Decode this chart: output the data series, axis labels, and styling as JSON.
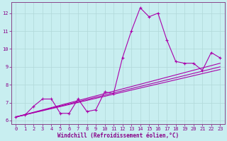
{
  "xlabel": "Windchill (Refroidissement éolien,°C)",
  "background_color": "#c8eef0",
  "grid_color": "#b0d8d8",
  "line_color": "#aa00aa",
  "text_color": "#880088",
  "spine_color": "#884488",
  "xlim": [
    -0.5,
    23.5
  ],
  "ylim": [
    5.8,
    12.6
  ],
  "yticks": [
    6,
    7,
    8,
    9,
    10,
    11,
    12
  ],
  "xticks": [
    0,
    1,
    2,
    3,
    4,
    5,
    6,
    7,
    8,
    9,
    10,
    11,
    12,
    13,
    14,
    15,
    16,
    17,
    18,
    19,
    20,
    21,
    22,
    23
  ],
  "series1_x": [
    0,
    1,
    2,
    3,
    4,
    5,
    6,
    7,
    8,
    9,
    10,
    11,
    12,
    13,
    14,
    15,
    16,
    17,
    18,
    19,
    20,
    21,
    22,
    23
  ],
  "series1_y": [
    6.2,
    6.3,
    6.8,
    7.2,
    7.2,
    6.4,
    6.4,
    7.2,
    6.5,
    6.6,
    7.6,
    7.5,
    9.5,
    11.0,
    12.3,
    11.8,
    12.0,
    10.5,
    9.3,
    9.2,
    9.2,
    8.8,
    9.8,
    9.5
  ],
  "series2_x": [
    0,
    23
  ],
  "series2_y": [
    6.2,
    9.2
  ],
  "series3_x": [
    0,
    23
  ],
  "series3_y": [
    6.2,
    9.0
  ],
  "series4_x": [
    0,
    23
  ],
  "series4_y": [
    6.2,
    8.85
  ],
  "tick_fontsize": 5,
  "label_fontsize": 5.5
}
